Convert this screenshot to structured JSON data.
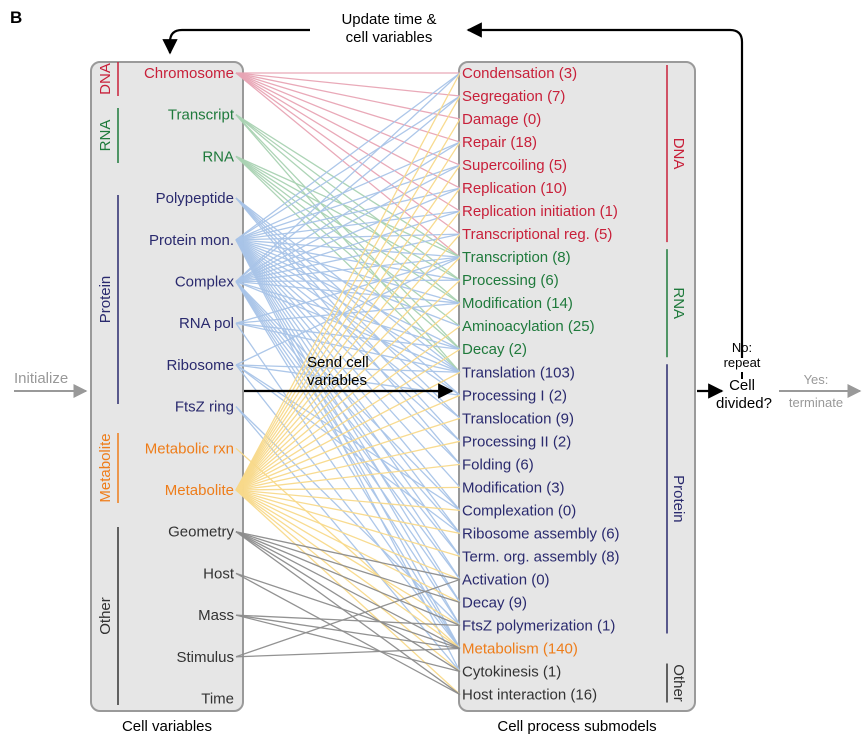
{
  "panel_label": "B",
  "colors": {
    "dna": "#c8203a",
    "rna": "#1f7a3c",
    "protein": "#2a2a6e",
    "metabolite": "#ee7d1a",
    "other": "#333333",
    "box_fill": "#e6e6e6",
    "box_stroke": "#9a9a9a",
    "gray_text": "#999999",
    "line_dna": "#e8a4b4",
    "line_rna": "#a9d2b2",
    "line_protein": "#a9c4e8",
    "line_metabolite": "#f8d98a",
    "line_other": "#8c8c8c"
  },
  "labels": {
    "update": [
      "Update time &",
      "cell variables"
    ],
    "send": [
      "Send cell",
      "variables"
    ],
    "initialize": "Initialize",
    "no_repeat": [
      "No:",
      "repeat"
    ],
    "cell_divided": [
      "Cell",
      "divided?"
    ],
    "yes_terminate": [
      "Yes:",
      "terminate"
    ],
    "left_caption": "Cell variables",
    "right_caption": "Cell process submodels"
  },
  "cell_variables": [
    {
      "id": "chromosome",
      "label": "Chromosome",
      "group": "dna"
    },
    {
      "id": "transcript",
      "label": "Transcript",
      "group": "rna"
    },
    {
      "id": "rna",
      "label": "RNA",
      "group": "rna"
    },
    {
      "id": "polypeptide",
      "label": "Polypeptide",
      "group": "protein"
    },
    {
      "id": "protein_mon",
      "label": "Protein mon.",
      "group": "protein"
    },
    {
      "id": "complex",
      "label": "Complex",
      "group": "protein"
    },
    {
      "id": "rna_pol",
      "label": "RNA pol",
      "group": "protein"
    },
    {
      "id": "ribosome",
      "label": "Ribosome",
      "group": "protein"
    },
    {
      "id": "ftsz_ring",
      "label": "FtsZ ring",
      "group": "protein"
    },
    {
      "id": "metabolic_rxn",
      "label": "Metabolic rxn",
      "group": "metabolite"
    },
    {
      "id": "metabolite",
      "label": "Metabolite",
      "group": "metabolite"
    },
    {
      "id": "geometry",
      "label": "Geometry",
      "group": "other"
    },
    {
      "id": "host",
      "label": "Host",
      "group": "other"
    },
    {
      "id": "mass",
      "label": "Mass",
      "group": "other"
    },
    {
      "id": "stimulus",
      "label": "Stimulus",
      "group": "other"
    },
    {
      "id": "time",
      "label": "Time",
      "group": "other"
    }
  ],
  "left_groups": [
    {
      "label": "DNA",
      "group": "dna",
      "from": 0,
      "to": 0
    },
    {
      "label": "RNA",
      "group": "rna",
      "from": 1,
      "to": 2
    },
    {
      "label": "Protein",
      "group": "protein",
      "from": 3,
      "to": 8
    },
    {
      "label": "Metabolite",
      "group": "metabolite",
      "from": 9,
      "to": 10
    },
    {
      "label": "Other",
      "group": "other",
      "from": 11,
      "to": 15
    }
  ],
  "submodels": [
    {
      "label": "Condensation (3)",
      "group": "dna"
    },
    {
      "label": "Segregation (7)",
      "group": "dna"
    },
    {
      "label": "Damage (0)",
      "group": "dna"
    },
    {
      "label": "Repair (18)",
      "group": "dna"
    },
    {
      "label": "Supercoiling (5)",
      "group": "dna"
    },
    {
      "label": "Replication (10)",
      "group": "dna"
    },
    {
      "label": "Replication initiation (1)",
      "group": "dna"
    },
    {
      "label": "Transcriptional reg. (5)",
      "group": "dna"
    },
    {
      "label": "Transcription (8)",
      "group": "rna"
    },
    {
      "label": "Processing (6)",
      "group": "rna"
    },
    {
      "label": "Modification (14)",
      "group": "rna"
    },
    {
      "label": "Aminoacylation (25)",
      "group": "rna"
    },
    {
      "label": "Decay (2)",
      "group": "rna"
    },
    {
      "label": "Translation (103)",
      "group": "protein"
    },
    {
      "label": "Processing I (2)",
      "group": "protein"
    },
    {
      "label": "Translocation (9)",
      "group": "protein"
    },
    {
      "label": "Processing II (2)",
      "group": "protein"
    },
    {
      "label": "Folding (6)",
      "group": "protein"
    },
    {
      "label": "Modification (3)",
      "group": "protein"
    },
    {
      "label": "Complexation (0)",
      "group": "protein"
    },
    {
      "label": "Ribosome assembly (6)",
      "group": "protein"
    },
    {
      "label": "Term. org. assembly (8)",
      "group": "protein"
    },
    {
      "label": "Activation (0)",
      "group": "protein"
    },
    {
      "label": "Decay (9)",
      "group": "protein"
    },
    {
      "label": "FtsZ polymerization (1)",
      "group": "protein"
    },
    {
      "label": "Metabolism (140)",
      "group": "metabolite"
    },
    {
      "label": "Cytokinesis (1)",
      "group": "other"
    },
    {
      "label": "Host interaction (16)",
      "group": "other"
    }
  ],
  "right_groups": [
    {
      "label": "DNA",
      "group": "dna",
      "from": 0,
      "to": 7
    },
    {
      "label": "RNA",
      "group": "rna",
      "from": 8,
      "to": 12
    },
    {
      "label": "Protein",
      "group": "protein",
      "from": 13,
      "to": 24
    },
    {
      "label": "Other",
      "group": "other",
      "from": 26,
      "to": 27
    }
  ],
  "connections": [
    {
      "from": 0,
      "to": [
        0,
        1,
        2,
        3,
        4,
        5,
        6,
        7,
        8
      ]
    },
    {
      "from": 1,
      "to": [
        8,
        9,
        10,
        12,
        13
      ]
    },
    {
      "from": 2,
      "to": [
        8,
        9,
        10,
        11,
        12,
        13
      ]
    },
    {
      "from": 3,
      "to": [
        13,
        14,
        15,
        16,
        17
      ]
    },
    {
      "from": 4,
      "to": [
        0,
        1,
        3,
        4,
        5,
        6,
        7,
        8,
        9,
        10,
        11,
        12,
        13,
        14,
        15,
        16,
        17,
        18,
        19,
        20,
        21,
        22,
        23,
        24,
        25,
        26
      ]
    },
    {
      "from": 5,
      "to": [
        0,
        1,
        3,
        4,
        5,
        6,
        7,
        8,
        9,
        10,
        12,
        13,
        19,
        20,
        21,
        22,
        23,
        24,
        25
      ]
    },
    {
      "from": 6,
      "to": [
        8,
        10,
        12,
        13,
        25
      ]
    },
    {
      "from": 7,
      "to": [
        8,
        13,
        14,
        19,
        20,
        25
      ]
    },
    {
      "from": 8,
      "to": [
        24,
        26
      ]
    },
    {
      "from": 9,
      "to": [
        25
      ]
    },
    {
      "from": 10,
      "to": [
        0,
        1,
        2,
        3,
        4,
        5,
        6,
        7,
        8,
        9,
        10,
        11,
        12,
        13,
        14,
        15,
        16,
        17,
        18,
        19,
        20,
        21,
        22,
        23,
        24,
        25,
        26,
        27
      ]
    },
    {
      "from": 11,
      "to": [
        22,
        23,
        24,
        25,
        26,
        27
      ]
    },
    {
      "from": 12,
      "to": [
        25,
        27
      ]
    },
    {
      "from": 13,
      "to": [
        24,
        25,
        26
      ]
    },
    {
      "from": 14,
      "to": [
        22,
        25
      ]
    }
  ]
}
